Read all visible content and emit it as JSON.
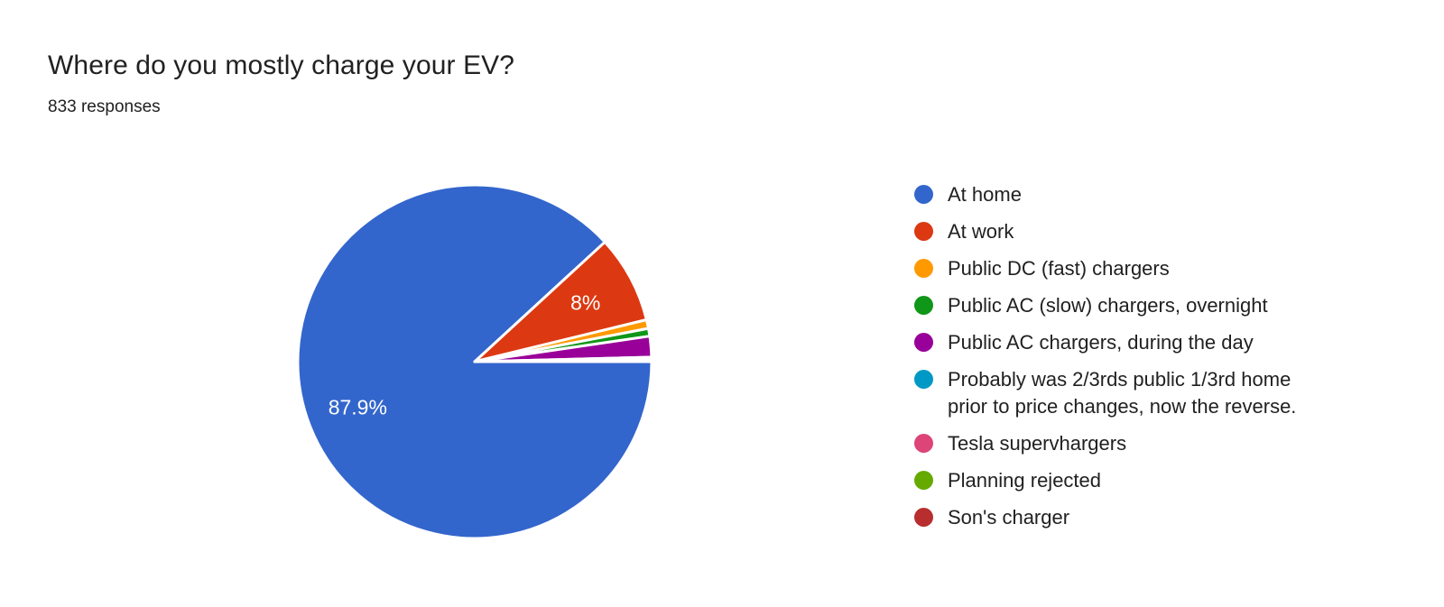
{
  "header": {
    "title": "Where do you mostly charge your EV?",
    "subtitle": "833 responses"
  },
  "chart_data": {
    "type": "pie",
    "title": "Where do you mostly charge your EV?",
    "total_responses": 833,
    "legend_position": "right",
    "start_angle_deg": 0,
    "direction": "clockwise",
    "label_color": "#ffffff",
    "slice_border_color": "#ffffff",
    "slices": [
      {
        "label": "At home",
        "value_pct": 87.9,
        "color": "#3366cc",
        "data_label": "87.9%"
      },
      {
        "label": "At work",
        "value_pct": 8.0,
        "color": "#dc3912",
        "data_label": "8%"
      },
      {
        "label": "Public DC (fast) chargers",
        "value_pct": 0.8,
        "color": "#ff9900",
        "data_label": ""
      },
      {
        "label": "Public AC (slow) chargers, overnight",
        "value_pct": 0.7,
        "color": "#109618",
        "data_label": ""
      },
      {
        "label": "Public AC chargers, during the day",
        "value_pct": 1.9,
        "color": "#990099",
        "data_label": ""
      },
      {
        "label": "Probably was 2/3rds public 1/3rd home\nprior to price changes, now the reverse.",
        "value_pct": 0.1,
        "color": "#0099c6",
        "data_label": ""
      },
      {
        "label": "Tesla supervhargers",
        "value_pct": 0.1,
        "color": "#dd4477",
        "data_label": ""
      },
      {
        "label": "Planning rejected",
        "value_pct": 0.1,
        "color": "#66aa00",
        "data_label": ""
      },
      {
        "label": "Son's charger",
        "value_pct": 0.1,
        "color": "#b82e2e",
        "data_label": ""
      }
    ]
  }
}
